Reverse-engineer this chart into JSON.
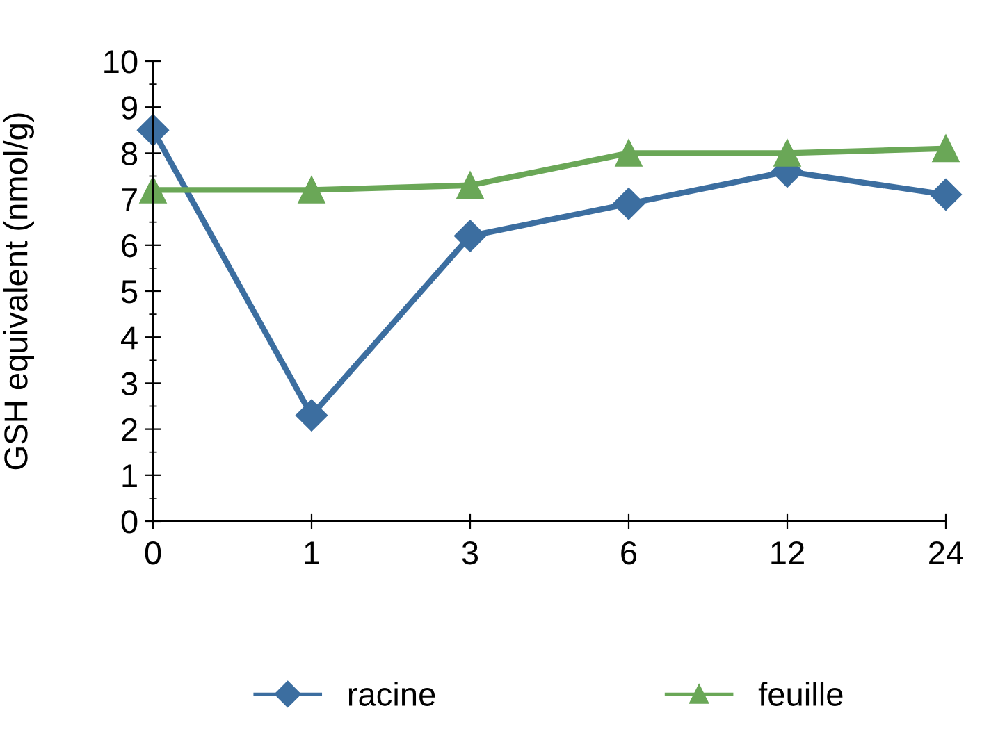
{
  "chart_data": {
    "type": "line",
    "ylabel": "GSH equivalent (nmol/g)",
    "categories": [
      "0",
      "1",
      "3",
      "6",
      "12",
      "24"
    ],
    "series": [
      {
        "name": "racine",
        "color": "#3c6ea0",
        "values": [
          8.5,
          2.3,
          6.2,
          6.9,
          7.6,
          7.1
        ],
        "marker": "diamond"
      },
      {
        "name": "feuille",
        "color": "#6aa757",
        "values": [
          7.2,
          7.2,
          7.3,
          8.0,
          8.0,
          8.1
        ],
        "marker": "triangle"
      }
    ],
    "ylim": [
      0,
      10
    ],
    "yticks": [
      0,
      1,
      2,
      3,
      4,
      5,
      6,
      7,
      8,
      9,
      10
    ],
    "grid": false,
    "legend": "bottom"
  }
}
